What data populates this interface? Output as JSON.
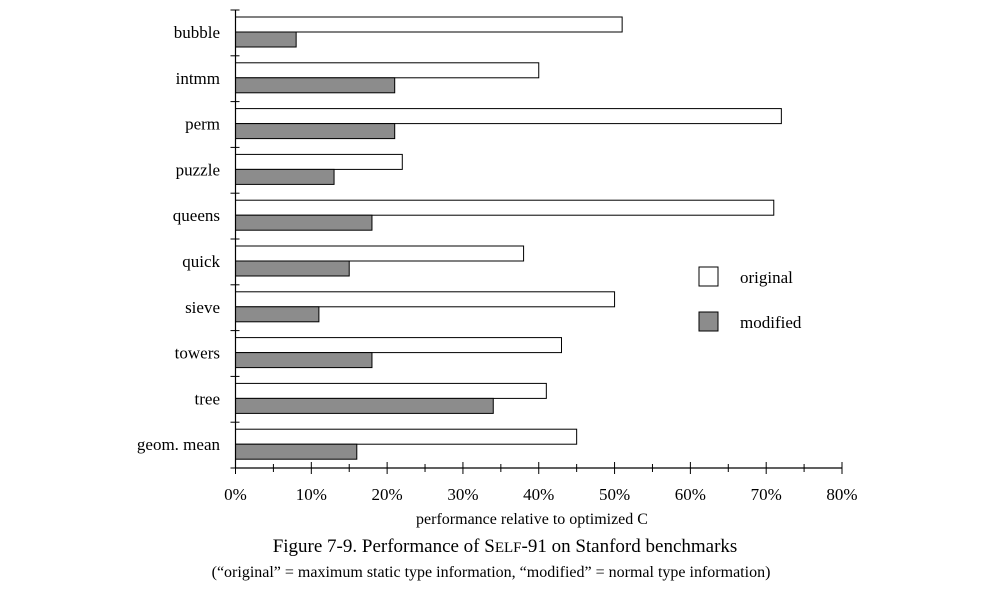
{
  "chart_data": {
    "type": "bar",
    "orientation": "horizontal",
    "categories": [
      "bubble",
      "intmm",
      "perm",
      "puzzle",
      "queens",
      "quick",
      "sieve",
      "towers",
      "tree",
      "geom. mean"
    ],
    "series": [
      {
        "name": "original",
        "values": [
          51,
          40,
          72,
          22,
          71,
          38,
          50,
          43,
          41,
          45
        ],
        "color": "#ffffff"
      },
      {
        "name": "modified",
        "values": [
          8,
          21,
          21,
          13,
          18,
          15,
          11,
          18,
          34,
          16
        ],
        "color": "#8c8c8c"
      }
    ],
    "xlabel": "performance relative to optimized C",
    "xlim": [
      0,
      80
    ],
    "xticks": [
      "0%",
      "10%",
      "20%",
      "30%",
      "40%",
      "50%",
      "60%",
      "70%",
      "80%"
    ],
    "value_unit": "%",
    "grid": false,
    "legend_position": "right"
  },
  "caption": {
    "title_prefix": "Figure 7-9.  Performance of S",
    "title_smallcaps": "ELF",
    "title_suffix": "-91 on Stanford benchmarks",
    "subtitle": "(“original” = maximum static type information, “modified” = normal type information)"
  }
}
